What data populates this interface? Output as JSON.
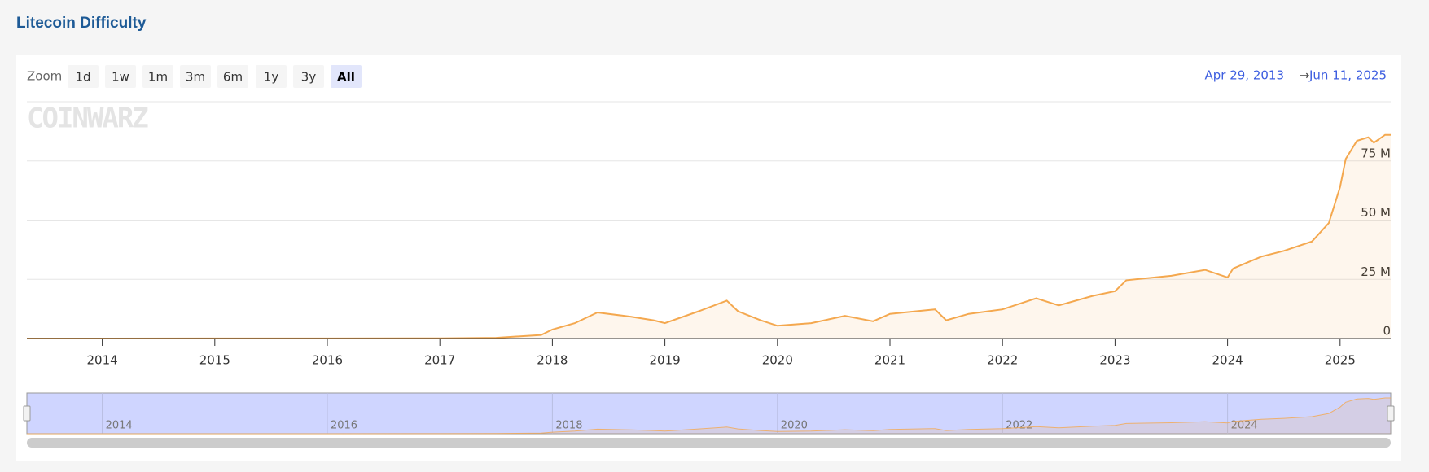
{
  "title": "Litecoin Difficulty",
  "zoom_label": "Zoom",
  "zoom_buttons": [
    "1d",
    "1w",
    "1m",
    "3m",
    "6m",
    "1y",
    "3y",
    "All"
  ],
  "selected_button": 7,
  "range_from": "Apr 29, 2013",
  "range_separator": "→",
  "range_to": "Jun 11, 2025",
  "watermark": "COINWARZ",
  "chart_data": {
    "type": "area-line",
    "color": "#f4a84f",
    "x": [
      2013.33,
      2014,
      2015,
      2016,
      2017,
      2017.5,
      2017.9,
      2018,
      2018.2,
      2018.4,
      2018.7,
      2018.9,
      2019,
      2019.3,
      2019.55,
      2019.65,
      2019.85,
      2020,
      2020.3,
      2020.6,
      2020.85,
      2021,
      2021.4,
      2021.5,
      2021.7,
      2022,
      2022.3,
      2022.5,
      2022.8,
      2023,
      2023.1,
      2023.5,
      2023.8,
      2024,
      2024.05,
      2024.3,
      2024.5,
      2024.75,
      2024.9,
      2025,
      2025.05,
      2025.15,
      2025.25,
      2025.3,
      2025.4,
      2025.45
    ],
    "values": [
      0,
      0.01,
      0.04,
      0.05,
      0.1,
      0.3,
      1.5,
      3.8,
      6.5,
      11,
      9.2,
      7.7,
      6.5,
      11.5,
      16,
      11.5,
      7.7,
      5.4,
      6.5,
      9.6,
      7.3,
      10.4,
      12.3,
      7.7,
      10.4,
      12.3,
      17,
      14,
      18,
      20,
      24.6,
      26.5,
      29,
      25.8,
      29.6,
      34.6,
      37,
      41,
      48.8,
      64,
      75.8,
      83.5,
      85,
      82.7,
      86,
      86
    ],
    "xlim": [
      2013.33,
      2025.45
    ],
    "xticks": [
      2014,
      2015,
      2016,
      2017,
      2018,
      2019,
      2020,
      2021,
      2022,
      2023,
      2024,
      2025
    ],
    "ylim": [
      0,
      100
    ],
    "yticks": [
      0,
      {
        "value": 25,
        "label": "25 M"
      },
      {
        "value": 50,
        "label": "50 M"
      },
      {
        "value": 75,
        "label": "75 M"
      }
    ],
    "grid": true,
    "navigator_ylim": [
      0,
      90
    ],
    "navigator_ticks": [
      2014,
      2016,
      2018,
      2020,
      2022,
      2024
    ]
  }
}
